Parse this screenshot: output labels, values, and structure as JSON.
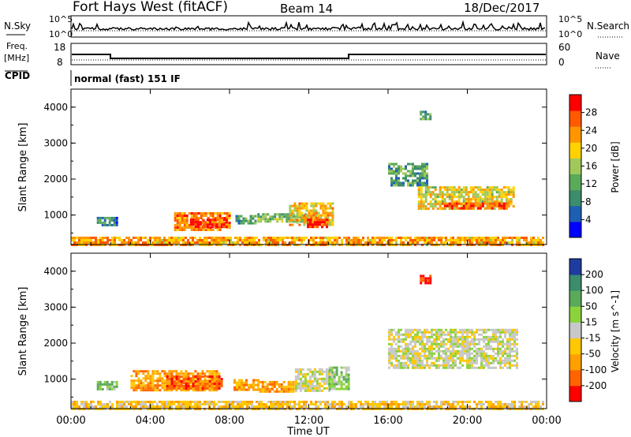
{
  "header": {
    "station": "Fort Hays West (fitACF)",
    "beam": "Beam 14",
    "date": "18/Dec/2017"
  },
  "top_panels": {
    "nsky_label": "N.Sky",
    "nsky_ticks": [
      "10^5",
      "10^0"
    ],
    "nsearch_label": "N.Search",
    "nsearch_ticks": [
      "10^5",
      "10^0"
    ],
    "freq_label_1": "Freq.",
    "freq_label_2": "[MHz]",
    "freq_ticks": [
      "18",
      "8"
    ],
    "nave_label": "Nave",
    "nave_ticks": [
      "60",
      "0"
    ],
    "cpid_label": "CPID",
    "cpid_text": "normal (fast) 151 IF"
  },
  "chart_data": [
    {
      "type": "heatmap",
      "name": "power",
      "ylabel": "Slant Range [km]",
      "yticks": [
        "1000",
        "2000",
        "3000",
        "4000"
      ],
      "colorbar_label": "Power [dB]",
      "colorbar_ticks": [
        "4",
        "8",
        "12",
        "16",
        "20",
        "24",
        "28"
      ],
      "colors": [
        "#0000ff",
        "#1e5fb4",
        "#3c8c6e",
        "#5aaa5a",
        "#a0c85a",
        "#ffd200",
        "#ff9600",
        "#ff5a00",
        "#ff0000"
      ],
      "blobs": [
        {
          "t": [
            1.3,
            2.3
          ],
          "r": [
            750,
            950
          ],
          "v": 7
        },
        {
          "t": [
            5.2,
            8.0
          ],
          "r": [
            600,
            1080
          ],
          "v": 24
        },
        {
          "t": [
            6.0,
            7.8
          ],
          "r": [
            650,
            900
          ],
          "v": 29
        },
        {
          "t": [
            8.3,
            9.3
          ],
          "r": [
            800,
            1000
          ],
          "v": 9
        },
        {
          "t": [
            9.4,
            11.8
          ],
          "r": [
            850,
            1050
          ],
          "v": 12
        },
        {
          "t": [
            11.0,
            13.2
          ],
          "r": [
            700,
            1350
          ],
          "v": 20
        },
        {
          "t": [
            11.9,
            12.9
          ],
          "r": [
            650,
            900
          ],
          "v": 29
        },
        {
          "t": [
            16.0,
            18.0
          ],
          "r": [
            1850,
            2450
          ],
          "v": 10
        },
        {
          "t": [
            17.5,
            22.3
          ],
          "r": [
            1200,
            1800
          ],
          "v": 18
        },
        {
          "t": [
            18.7,
            22.0
          ],
          "r": [
            1200,
            1350
          ],
          "v": 26
        },
        {
          "t": [
            17.6,
            18.1
          ],
          "r": [
            3700,
            3900
          ],
          "v": 11
        },
        {
          "t": [
            0.0,
            23.8
          ],
          "r": [
            200,
            400
          ],
          "v": 22
        }
      ]
    },
    {
      "type": "heatmap",
      "name": "velocity",
      "ylabel": "Slant Range [km]",
      "yticks": [
        "1000",
        "2000",
        "3000",
        "4000"
      ],
      "colorbar_label": "Velocity [m s^-1]",
      "colorbar_ticks": [
        "200",
        "100",
        "50",
        "15",
        "-15",
        "-50",
        "-100",
        "-200"
      ],
      "colors": [
        "#1e3ca0",
        "#3c8c6e",
        "#5aaa5a",
        "#8cd23c",
        "#c8c8c8",
        "#ffc800",
        "#ffa000",
        "#ff6400",
        "#ff0000"
      ],
      "blobs": [
        {
          "t": [
            1.3,
            2.3
          ],
          "r": [
            750,
            950
          ],
          "v": 3
        },
        {
          "t": [
            3.0,
            7.5
          ],
          "r": [
            700,
            1250
          ],
          "v": 6
        },
        {
          "t": [
            4.8,
            7.6
          ],
          "r": [
            750,
            1100
          ],
          "v": 7
        },
        {
          "t": [
            8.2,
            9.5
          ],
          "r": [
            700,
            1000
          ],
          "v": 6
        },
        {
          "t": [
            9.5,
            11.2
          ],
          "r": [
            650,
            950
          ],
          "v": 6
        },
        {
          "t": [
            11.3,
            13.0
          ],
          "r": [
            650,
            1300
          ],
          "v": 4
        },
        {
          "t": [
            13.0,
            14.0
          ],
          "r": [
            700,
            1350
          ],
          "v": 3
        },
        {
          "t": [
            16.0,
            22.5
          ],
          "r": [
            1300,
            2400
          ],
          "v": 4
        },
        {
          "t": [
            17.6,
            18.1
          ],
          "r": [
            3700,
            3900
          ],
          "v": 8
        },
        {
          "t": [
            0.0,
            23.8
          ],
          "r": [
            200,
            400
          ],
          "v": 5
        }
      ]
    }
  ],
  "xaxis": {
    "label": "Time UT",
    "ticks": [
      "00:00",
      "04:00",
      "08:00",
      "12:00",
      "16:00",
      "20:00",
      "00:00"
    ],
    "range": [
      0,
      24
    ]
  },
  "yrange": [
    180,
    4500
  ]
}
